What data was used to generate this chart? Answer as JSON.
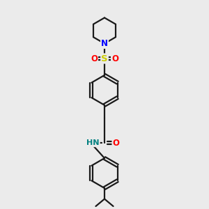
{
  "background_color": "#ebebeb",
  "bond_color": "#1a1a1a",
  "n_color": "#0000ff",
  "o_color": "#ff0000",
  "s_color": "#cccc00",
  "nh_color": "#008080",
  "figsize": [
    3.0,
    3.0
  ],
  "dpi": 100,
  "xlim": [
    0,
    10
  ],
  "ylim": [
    0,
    10
  ]
}
